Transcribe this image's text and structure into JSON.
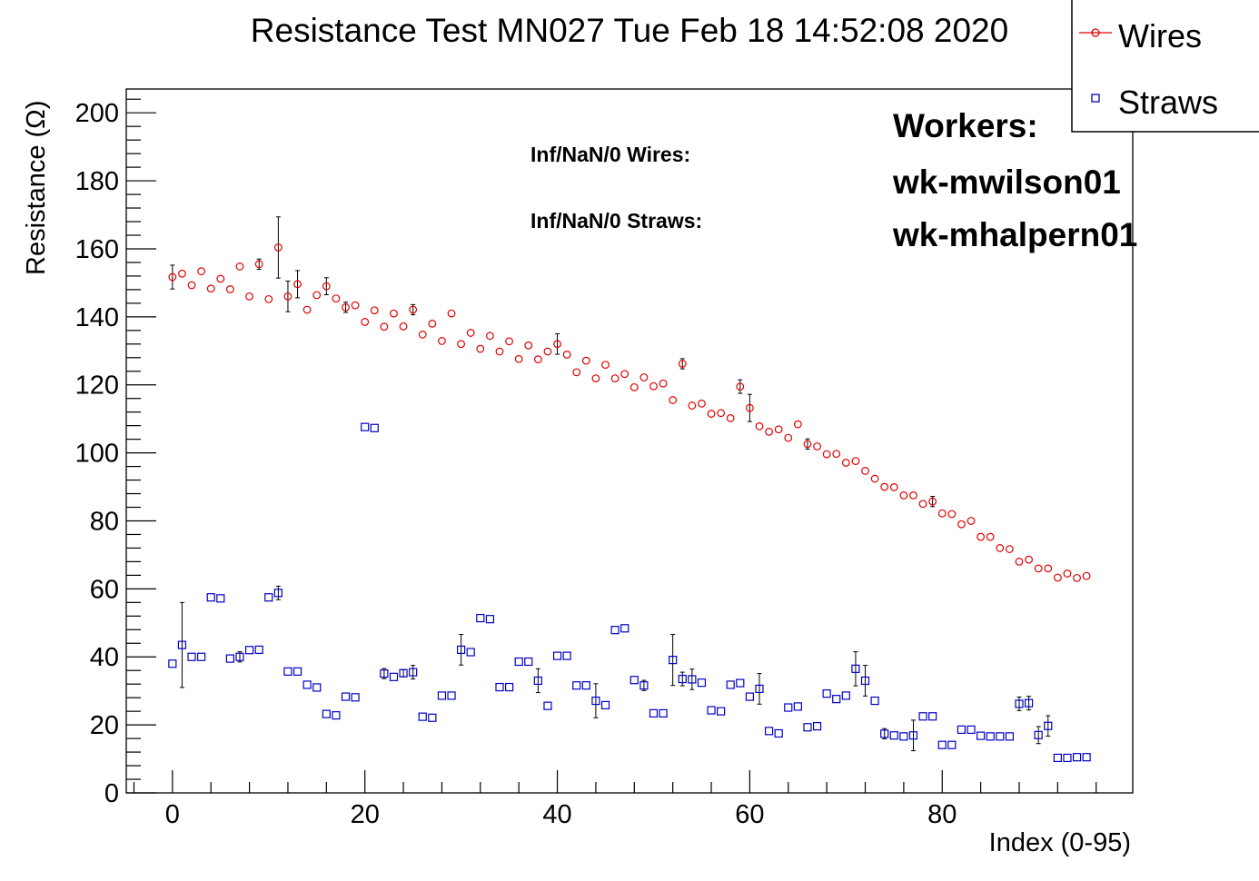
{
  "chart_data": {
    "type": "scatter",
    "title": "Resistance Test MN027 Tue Feb 18 14:52:08 2020",
    "xlabel": "Index (0-95)",
    "ylabel": "Resistance (Ω)",
    "xlim": [
      -4.8,
      99.8
    ],
    "ylim": [
      0,
      207
    ],
    "x_ticks": [
      0,
      20,
      40,
      60,
      80
    ],
    "y_ticks": [
      0,
      20,
      40,
      60,
      80,
      100,
      120,
      140,
      160,
      180,
      200
    ],
    "grid": false,
    "legend_position": "top-right",
    "annotations": {
      "inf_wires": "Inf/NaN/0 Wires:",
      "inf_straws": "Inf/NaN/0 Straws:",
      "workers_heading": "Workers:",
      "workers": [
        "wk-mwilson01",
        "wk-mhalpern01"
      ]
    },
    "series": [
      {
        "name": "Wires",
        "color": "#e00000",
        "marker": "circle",
        "x": [
          0,
          1,
          2,
          3,
          4,
          5,
          6,
          7,
          8,
          9,
          10,
          11,
          12,
          13,
          14,
          15,
          16,
          17,
          18,
          19,
          20,
          21,
          22,
          23,
          24,
          25,
          26,
          27,
          28,
          29,
          30,
          31,
          32,
          33,
          34,
          35,
          36,
          37,
          38,
          39,
          40,
          41,
          42,
          43,
          44,
          45,
          46,
          47,
          48,
          49,
          50,
          51,
          52,
          53,
          54,
          55,
          56,
          57,
          58,
          59,
          60,
          61,
          62,
          63,
          64,
          65,
          66,
          67,
          68,
          69,
          70,
          71,
          72,
          73,
          74,
          75,
          76,
          77,
          78,
          79,
          80,
          81,
          82,
          83,
          84,
          85,
          86,
          87,
          88,
          89,
          90,
          91,
          92,
          93,
          94,
          95
        ],
        "y": [
          151.7,
          152.7,
          149.3,
          153.4,
          148.3,
          151.2,
          148.1,
          154.8,
          146.0,
          155.5,
          145.2,
          160.4,
          146.0,
          149.6,
          142.1,
          146.4,
          149.0,
          145.4,
          142.8,
          143.4,
          138.5,
          141.9,
          137.1,
          141.0,
          137.2,
          142.1,
          134.8,
          138.0,
          132.9,
          141.0,
          132.0,
          135.3,
          130.6,
          134.4,
          129.8,
          132.8,
          127.6,
          131.6,
          127.5,
          129.8,
          132.0,
          128.9,
          123.7,
          127.1,
          121.9,
          125.9,
          121.9,
          123.2,
          119.3,
          122.2,
          119.6,
          120.4,
          115.5,
          126.2,
          113.9,
          114.5,
          111.5,
          111.7,
          110.2,
          119.5,
          113.2,
          107.8,
          106.2,
          106.9,
          104.4,
          108.4,
          102.6,
          101.9,
          99.6,
          99.7,
          97.1,
          97.6,
          94.7,
          92.4,
          90.0,
          89.9,
          87.5,
          87.5,
          85.0,
          85.7,
          82.2,
          82.0,
          79.0,
          80.0,
          75.3,
          75.3,
          72.0,
          71.7,
          68.0,
          68.6,
          66.0,
          66.0,
          63.3,
          64.5,
          63.2,
          63.8
        ],
        "y_err": [
          3.5,
          0,
          0,
          0,
          0,
          0,
          0,
          0,
          0,
          1.5,
          0,
          9,
          4.5,
          4,
          0,
          0,
          2.5,
          0,
          1.5,
          0,
          0,
          0,
          0,
          0,
          0,
          1.5,
          0,
          0,
          0,
          0,
          0,
          0,
          0,
          0,
          0,
          0,
          0,
          0,
          0,
          0,
          3,
          0,
          0,
          0,
          0,
          0,
          0,
          0,
          0,
          0,
          0,
          0,
          0,
          1.5,
          0,
          0,
          0,
          0,
          0,
          2,
          4,
          0,
          0,
          0,
          0,
          0,
          1.5,
          0,
          0,
          0,
          0,
          0,
          0,
          0,
          0,
          0,
          0,
          0,
          0,
          1.5,
          0,
          0,
          0,
          0,
          0,
          0,
          0,
          0,
          0,
          0,
          0,
          0,
          0,
          0,
          0,
          0
        ]
      },
      {
        "name": "Straws",
        "color": "#0000c8",
        "marker": "square",
        "x": [
          0,
          1,
          2,
          3,
          4,
          5,
          6,
          7,
          8,
          9,
          10,
          11,
          12,
          13,
          14,
          15,
          16,
          17,
          18,
          19,
          20,
          21,
          22,
          23,
          24,
          25,
          26,
          27,
          28,
          29,
          30,
          31,
          32,
          33,
          34,
          35,
          36,
          37,
          38,
          39,
          40,
          41,
          42,
          43,
          44,
          45,
          46,
          47,
          48,
          49,
          50,
          51,
          52,
          53,
          54,
          55,
          56,
          57,
          58,
          59,
          60,
          61,
          62,
          63,
          64,
          65,
          66,
          67,
          68,
          69,
          70,
          71,
          72,
          73,
          74,
          75,
          76,
          77,
          78,
          79,
          80,
          81,
          82,
          83,
          84,
          85,
          86,
          87,
          88,
          89,
          90,
          91,
          92,
          93,
          94,
          95
        ],
        "y": [
          38.0,
          43.5,
          40.0,
          40.0,
          57.5,
          57.2,
          39.5,
          40.0,
          42.0,
          42.1,
          57.5,
          58.8,
          35.7,
          35.7,
          31.8,
          31.0,
          23.2,
          22.8,
          28.3,
          28.1,
          107.6,
          107.3,
          35.1,
          34.1,
          35.2,
          35.5,
          22.4,
          22.1,
          28.6,
          28.6,
          42.1,
          41.4,
          51.4,
          51.1,
          31.1,
          31.1,
          38.6,
          38.6,
          33.0,
          25.6,
          40.3,
          40.3,
          31.6,
          31.6,
          27.1,
          25.8,
          47.9,
          48.4,
          33.2,
          31.6,
          23.4,
          23.4,
          39.1,
          33.5,
          33.4,
          32.4,
          24.3,
          24.0,
          31.8,
          32.3,
          28.3,
          30.6,
          18.2,
          17.5,
          25.1,
          25.4,
          19.3,
          19.6,
          29.2,
          27.6,
          28.6,
          36.5,
          33.0,
          27.1,
          17.4,
          16.9,
          16.6,
          16.9,
          22.5,
          22.5,
          14.1,
          14.1,
          18.6,
          18.6,
          16.8,
          16.6,
          16.6,
          16.6,
          26.2,
          26.4,
          17.0,
          19.7,
          10.3,
          10.3,
          10.5,
          10.5
        ],
        "y_err": [
          0,
          12.5,
          0,
          0,
          0,
          0,
          0,
          1.5,
          0,
          0,
          0,
          2,
          0,
          0,
          0,
          0,
          0,
          0,
          0,
          0,
          0,
          0,
          1.5,
          0,
          1,
          2,
          0,
          0,
          0,
          0,
          4.5,
          0,
          0,
          0,
          0,
          0,
          0,
          0,
          3.5,
          0,
          0,
          0,
          0,
          0,
          5,
          0,
          0,
          0,
          0,
          1.5,
          0,
          0,
          7.5,
          2,
          3,
          0,
          0,
          0,
          0,
          0,
          0,
          4.5,
          0,
          0,
          0,
          0,
          0,
          0,
          0,
          0,
          0,
          5,
          4.5,
          0,
          1.5,
          0,
          0,
          4.5,
          0,
          0,
          0,
          0,
          0,
          0,
          0,
          0,
          0,
          0,
          2,
          2,
          2.5,
          3,
          0,
          0,
          0,
          0
        ]
      }
    ]
  }
}
